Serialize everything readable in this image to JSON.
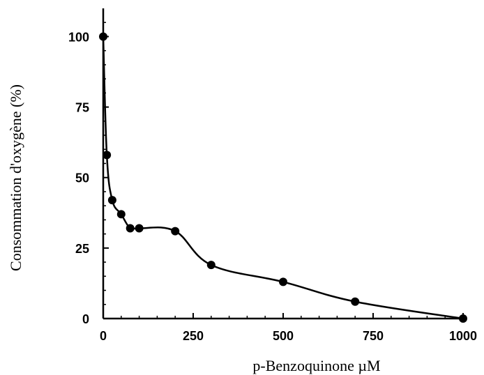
{
  "chart_data": {
    "type": "line",
    "title": "",
    "xlabel": "p-Benzoquinone µM",
    "ylabel": "Consommation d'oxygène (%)",
    "xlim": [
      0,
      1000
    ],
    "ylim": [
      0,
      110
    ],
    "x_ticks": [
      0,
      250,
      500,
      750,
      1000
    ],
    "y_ticks": [
      0,
      25,
      50,
      75,
      100
    ],
    "x_minor_step": 50,
    "y_minor_step": 5,
    "grid": false,
    "legend": "none",
    "series": [
      {
        "color": "#000000",
        "marker": "filled-circle",
        "x": [
          0,
          10,
          25,
          50,
          75,
          100,
          200,
          300,
          500,
          700,
          1000
        ],
        "y": [
          100,
          58,
          42,
          37,
          32,
          32,
          31,
          19,
          13,
          6,
          0
        ]
      }
    ]
  }
}
